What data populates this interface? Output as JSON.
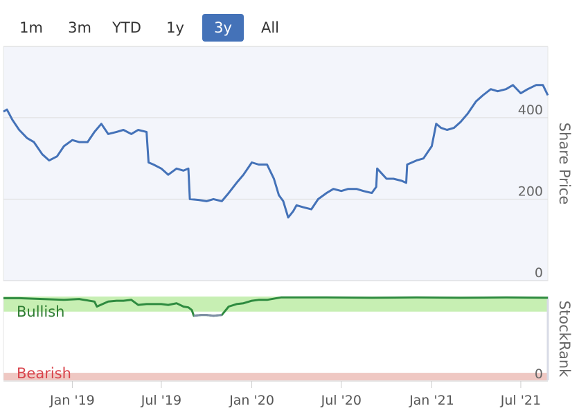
{
  "range_selector": {
    "buttons": [
      "1m",
      "3m",
      "YTD",
      "1y",
      "3y",
      "All"
    ],
    "active": "3y"
  },
  "colors": {
    "price_line": "#4472b8",
    "price_bg": "#f3f5fb",
    "bullish_fill": "#c7efb3",
    "bearish_fill": "#efc8c3",
    "rank_line": "#2e8b3f",
    "rank_low_line": "#7f8fa6",
    "bullish_text": "#2e7d32",
    "bearish_text": "#d9444c",
    "active_button": "#4472b8"
  },
  "chart_data": [
    {
      "type": "line",
      "ylabel": "Share Price",
      "ylim": [
        0,
        575
      ],
      "yticks": [
        0,
        200,
        400
      ],
      "xlim": [
        "2018-08-14",
        "2021-08-25"
      ],
      "xticks": [
        "2019-01-01",
        "2019-07-01",
        "2020-01-01",
        "2020-07-01",
        "2021-01-01",
        "2021-07-01"
      ],
      "xtick_labels": [
        "Jan '19",
        "Jul '19",
        "Jan '20",
        "Jul '20",
        "Jan '21",
        "Jul '21"
      ],
      "grid": true,
      "series": [
        {
          "x": [
            "2018-08-14",
            "2018-08-21",
            "2018-09-01",
            "2018-09-15",
            "2018-10-01",
            "2018-10-15",
            "2018-11-01",
            "2018-11-15",
            "2018-12-01",
            "2018-12-15",
            "2019-01-01",
            "2019-01-15",
            "2019-02-01",
            "2019-02-15",
            "2019-03-01",
            "2019-03-15",
            "2019-04-01",
            "2019-04-15",
            "2019-05-01",
            "2019-05-15",
            "2019-06-01",
            "2019-06-05",
            "2019-06-15",
            "2019-07-01",
            "2019-07-15",
            "2019-08-01",
            "2019-08-15",
            "2019-08-25",
            "2019-08-28",
            "2019-09-15",
            "2019-10-01",
            "2019-10-15",
            "2019-11-01",
            "2019-11-15",
            "2019-12-01",
            "2019-12-15",
            "2020-01-01",
            "2020-01-15",
            "2020-02-01",
            "2020-02-15",
            "2020-02-25",
            "2020-03-05",
            "2020-03-15",
            "2020-03-25",
            "2020-04-01",
            "2020-04-15",
            "2020-05-01",
            "2020-05-15",
            "2020-06-01",
            "2020-06-15",
            "2020-07-01",
            "2020-07-15",
            "2020-08-01",
            "2020-08-15",
            "2020-09-01",
            "2020-09-10",
            "2020-09-12",
            "2020-10-01",
            "2020-10-15",
            "2020-11-01",
            "2020-11-10",
            "2020-11-12",
            "2020-12-01",
            "2020-12-15",
            "2021-01-01",
            "2021-01-10",
            "2021-01-20",
            "2021-02-01",
            "2021-02-15",
            "2021-03-01",
            "2021-03-15",
            "2021-04-01",
            "2021-04-15",
            "2021-05-01",
            "2021-05-15",
            "2021-06-01",
            "2021-06-15",
            "2021-07-01",
            "2021-07-15",
            "2021-08-01",
            "2021-08-15",
            "2021-08-25"
          ],
          "y": [
            415,
            420,
            395,
            370,
            350,
            340,
            310,
            295,
            305,
            330,
            345,
            340,
            340,
            365,
            385,
            360,
            365,
            370,
            360,
            370,
            365,
            290,
            285,
            275,
            260,
            275,
            270,
            275,
            200,
            198,
            195,
            200,
            195,
            215,
            240,
            260,
            290,
            285,
            285,
            250,
            210,
            195,
            155,
            170,
            185,
            180,
            175,
            200,
            215,
            225,
            220,
            225,
            225,
            220,
            215,
            230,
            275,
            250,
            250,
            245,
            240,
            285,
            295,
            300,
            330,
            385,
            375,
            370,
            375,
            390,
            410,
            440,
            455,
            470,
            465,
            470,
            480,
            460,
            470,
            480,
            480,
            455
          ]
        }
      ]
    },
    {
      "type": "line",
      "ylabel": "StockRank",
      "ylim": [
        0,
        100
      ],
      "yticks": [
        0
      ],
      "bands": [
        {
          "label": "Bullish",
          "from": 82,
          "to": 100
        },
        {
          "label": "Bearish",
          "from": 0,
          "to": 9
        }
      ],
      "series": [
        {
          "x": [
            "2018-08-14",
            "2018-09-15",
            "2018-11-01",
            "2018-12-15",
            "2019-01-15",
            "2019-02-15",
            "2019-02-20",
            "2019-03-15",
            "2019-04-01",
            "2019-04-15",
            "2019-05-01",
            "2019-05-15",
            "2019-06-01",
            "2019-07-01",
            "2019-07-15",
            "2019-08-01",
            "2019-08-15",
            "2019-08-25",
            "2019-09-01",
            "2019-09-05",
            "2019-09-20",
            "2019-10-01",
            "2019-10-15",
            "2019-11-01",
            "2019-11-15",
            "2019-12-01",
            "2019-12-15",
            "2020-01-01",
            "2020-01-15",
            "2020-02-01",
            "2020-03-01",
            "2020-04-01",
            "2020-06-01",
            "2020-09-01",
            "2020-12-01",
            "2021-03-01",
            "2021-06-01",
            "2021-08-25"
          ],
          "y": [
            98,
            98,
            97,
            96,
            97,
            94,
            88,
            94,
            95,
            95,
            96,
            90,
            91,
            91,
            90,
            92,
            88,
            87,
            84,
            77,
            78,
            78,
            77,
            78,
            88,
            91,
            92,
            95,
            96,
            96,
            99,
            99,
            99,
            98.5,
            99,
            98.5,
            99,
            98.5
          ]
        }
      ]
    }
  ]
}
